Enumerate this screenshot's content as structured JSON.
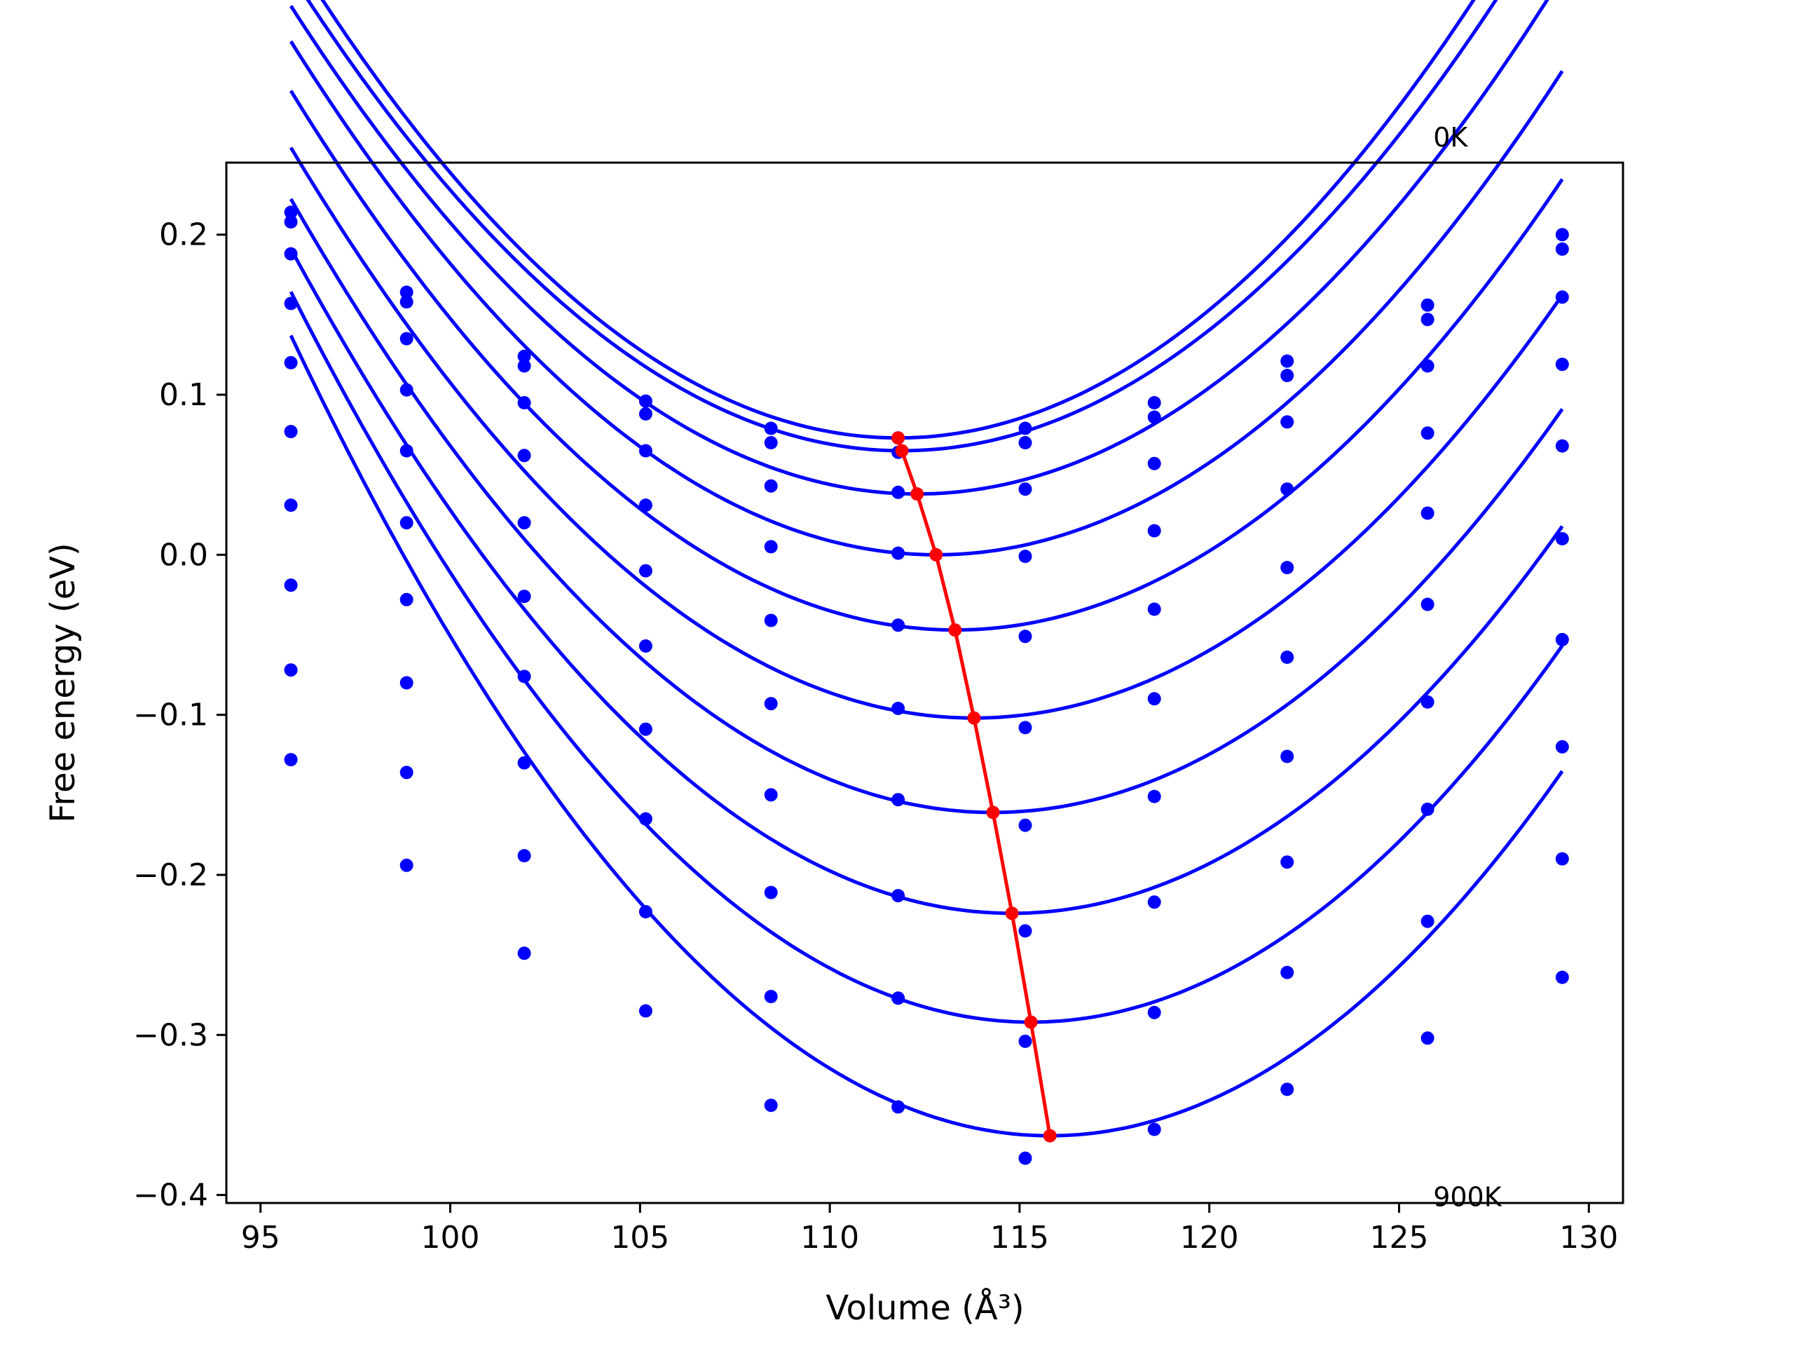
{
  "chart_data": {
    "type": "scatter",
    "title": "",
    "xlabel": "Volume (Å³)",
    "ylabel": "Free energy (eV)",
    "xlim": [
      94.1,
      130.9
    ],
    "ylim": [
      -0.405,
      0.245
    ],
    "xticks": [
      95,
      100,
      105,
      110,
      115,
      120,
      125,
      130
    ],
    "yticks": [
      -0.4,
      -0.3,
      -0.2,
      -0.1,
      0.0,
      0.1,
      0.2
    ],
    "ytick_labels": [
      "−0.4",
      "−0.3",
      "−0.2",
      "−0.1",
      "0.0",
      "0.1",
      "0.2"
    ],
    "grid": false,
    "annotations": [
      {
        "text": "0K",
        "x": 125.9,
        "y": 0.255
      },
      {
        "text": "900K",
        "x": 125.9,
        "y": -0.407
      }
    ],
    "colors": {
      "curves": "#0000ff",
      "points": "#0000ff",
      "minima": "#ff0000"
    },
    "volumes": [
      95.8,
      98.85,
      101.95,
      105.15,
      108.45,
      111.8,
      115.15,
      118.55,
      122.05,
      125.75,
      129.3
    ],
    "series": [
      {
        "points": [
          0.214,
          0.164,
          0.124,
          0.096,
          0.079,
          0.073,
          0.079,
          0.095,
          0.121,
          0.156,
          0.2
        ]
      },
      {
        "points": [
          0.208,
          0.158,
          0.118,
          0.088,
          0.07,
          0.064,
          0.07,
          0.086,
          0.112,
          0.147,
          0.191
        ]
      },
      {
        "points": [
          0.188,
          0.135,
          0.095,
          0.065,
          0.043,
          0.039,
          0.041,
          0.057,
          0.083,
          0.118,
          0.161
        ]
      },
      {
        "points": [
          0.157,
          0.103,
          0.062,
          0.031,
          0.005,
          0.001,
          -0.001,
          0.015,
          0.041,
          0.076,
          0.119
        ]
      },
      {
        "points": [
          0.12,
          0.065,
          0.02,
          -0.01,
          -0.041,
          -0.044,
          -0.051,
          -0.034,
          -0.008,
          0.026,
          0.068
        ]
      },
      {
        "points": [
          0.077,
          0.02,
          -0.026,
          -0.057,
          -0.093,
          -0.096,
          -0.108,
          -0.09,
          -0.064,
          -0.031,
          0.01
        ]
      },
      {
        "points": [
          0.031,
          -0.028,
          -0.076,
          -0.109,
          -0.15,
          -0.153,
          -0.169,
          -0.151,
          -0.126,
          -0.092,
          -0.053
        ]
      },
      {
        "points": [
          -0.019,
          -0.08,
          -0.13,
          -0.165,
          -0.211,
          -0.213,
          -0.235,
          -0.217,
          -0.192,
          -0.159,
          -0.12
        ]
      },
      {
        "points": [
          -0.072,
          -0.136,
          -0.188,
          -0.223,
          -0.276,
          -0.277,
          -0.304,
          -0.286,
          -0.261,
          -0.229,
          -0.19
        ]
      },
      {
        "points": [
          -0.128,
          -0.194,
          -0.249,
          -0.285,
          -0.344,
          -0.345,
          -0.377,
          -0.359,
          -0.334,
          -0.302,
          -0.264
        ]
      }
    ],
    "curves": [
      {
        "vmin": 111.8,
        "emin": 0.073,
        "k": 0.00119
      },
      {
        "vmin": 111.9,
        "emin": 0.065,
        "k": 0.00115
      },
      {
        "vmin": 112.3,
        "emin": 0.038,
        "k": 0.00112
      },
      {
        "vmin": 112.8,
        "emin": 0.0,
        "k": 0.00111
      },
      {
        "vmin": 113.3,
        "emin": -0.047,
        "k": 0.0011
      },
      {
        "vmin": 113.8,
        "emin": -0.102,
        "k": 0.0011
      },
      {
        "vmin": 114.3,
        "emin": -0.161,
        "k": 0.00112
      },
      {
        "vmin": 114.8,
        "emin": -0.224,
        "k": 0.00115
      },
      {
        "vmin": 115.3,
        "emin": -0.292,
        "k": 0.0012
      },
      {
        "vmin": 115.8,
        "emin": -0.363,
        "k": 0.00125
      }
    ],
    "minima": {
      "x": [
        111.8,
        111.9,
        112.3,
        112.8,
        113.3,
        113.8,
        114.3,
        114.8,
        115.3,
        115.8
      ],
      "y": [
        0.073,
        0.065,
        0.038,
        0.0,
        -0.047,
        -0.102,
        -0.161,
        -0.224,
        -0.292,
        -0.363
      ]
    }
  }
}
